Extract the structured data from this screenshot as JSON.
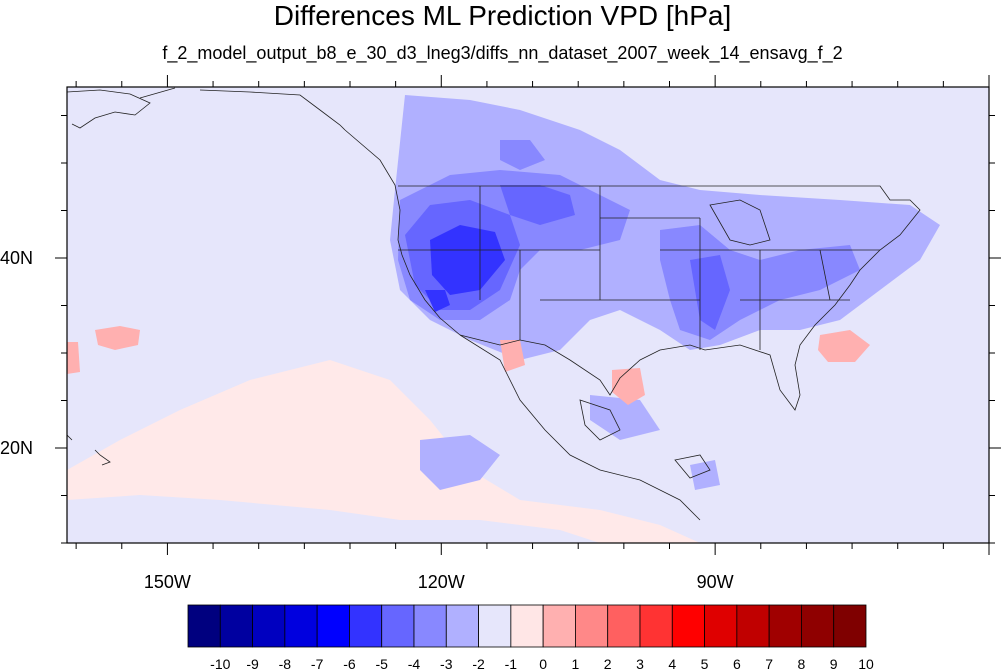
{
  "title": "Differences ML Prediction VPD [hPa]",
  "subtitle": "f_2_model_output_b8_e_30_d3_lneg3/diffs_nn_dataset_2007_week_14_ensavg_f_2",
  "map": {
    "lon_range": [
      -161,
      -60
    ],
    "lat_range": [
      10,
      58
    ],
    "lon_ticks": [
      {
        "lon": -150,
        "label": "150W"
      },
      {
        "lon": -120,
        "label": "120W"
      },
      {
        "lon": -90,
        "label": "90W"
      }
    ],
    "lat_ticks": [
      {
        "lat": 40,
        "label": "40N"
      },
      {
        "lat": 20,
        "label": "20N"
      }
    ]
  },
  "colorbar": {
    "labels": [
      "-10",
      "-9",
      "-8",
      "-7",
      "-6",
      "-5",
      "-4",
      "-3",
      "-2",
      "-1",
      "0",
      "1",
      "2",
      "3",
      "4",
      "5",
      "6",
      "7",
      "8",
      "9",
      "10"
    ],
    "colors": [
      "#00007f",
      "#0000a0",
      "#0000c0",
      "#0000df",
      "#0000ff",
      "#3333ff",
      "#6666ff",
      "#8888ff",
      "#b0b0ff",
      "#e6e6fb",
      "#ffe6e6",
      "#ffb0b0",
      "#ff8888",
      "#ff6060",
      "#ff3333",
      "#ff0000",
      "#df0000",
      "#c00000",
      "#a00000",
      "#8f0000",
      "#7f0000"
    ]
  },
  "field_colors": {
    "background_pos": "#ffe9e9",
    "neg1": "#e6e6fb",
    "neg2": "#b0b0ff",
    "neg3": "#8888ff",
    "neg4": "#6666ff",
    "neg5": "#3333ff",
    "pos1": "#ffb0b0",
    "pos2": "#ff8888"
  }
}
